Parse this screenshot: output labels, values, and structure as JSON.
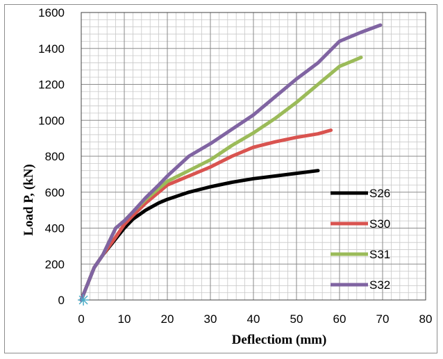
{
  "chart_data": {
    "type": "line",
    "title": "",
    "xlabel": "Deflectiom (mm)",
    "ylabel": "Load P, (kN)",
    "xlim": [
      0,
      80
    ],
    "ylim": [
      0,
      1600
    ],
    "xticks": [
      0,
      10,
      20,
      30,
      40,
      50,
      60,
      70,
      80
    ],
    "yticks": [
      0,
      200,
      400,
      600,
      800,
      1000,
      1200,
      1400,
      1600
    ],
    "grid": true,
    "legend_position": "right",
    "series": [
      {
        "name": "S26",
        "color": "#000000",
        "points": [
          [
            0,
            0
          ],
          [
            1,
            60
          ],
          [
            3,
            180
          ],
          [
            5,
            250
          ],
          [
            8,
            340
          ],
          [
            10,
            400
          ],
          [
            12,
            450
          ],
          [
            15,
            500
          ],
          [
            18,
            540
          ],
          [
            20,
            560
          ],
          [
            25,
            600
          ],
          [
            30,
            630
          ],
          [
            35,
            655
          ],
          [
            40,
            675
          ],
          [
            45,
            690
          ],
          [
            50,
            705
          ],
          [
            55,
            720
          ]
        ]
      },
      {
        "name": "S30",
        "color": "#d9534f",
        "points": [
          [
            0,
            0
          ],
          [
            1,
            60
          ],
          [
            3,
            180
          ],
          [
            5,
            250
          ],
          [
            8,
            350
          ],
          [
            10,
            420
          ],
          [
            12,
            470
          ],
          [
            15,
            540
          ],
          [
            18,
            600
          ],
          [
            20,
            640
          ],
          [
            25,
            690
          ],
          [
            30,
            740
          ],
          [
            35,
            800
          ],
          [
            40,
            850
          ],
          [
            45,
            880
          ],
          [
            50,
            905
          ],
          [
            55,
            925
          ],
          [
            58,
            945
          ]
        ]
      },
      {
        "name": "S31",
        "color": "#9bbb59",
        "points": [
          [
            0,
            0
          ],
          [
            1,
            60
          ],
          [
            3,
            180
          ],
          [
            5,
            250
          ],
          [
            8,
            400
          ],
          [
            10,
            440
          ],
          [
            12,
            490
          ],
          [
            15,
            560
          ],
          [
            18,
            620
          ],
          [
            20,
            660
          ],
          [
            25,
            720
          ],
          [
            30,
            780
          ],
          [
            35,
            860
          ],
          [
            40,
            930
          ],
          [
            45,
            1010
          ],
          [
            50,
            1100
          ],
          [
            55,
            1200
          ],
          [
            60,
            1300
          ],
          [
            65,
            1350
          ]
        ]
      },
      {
        "name": "S32",
        "color": "#8064a2",
        "points": [
          [
            0,
            0
          ],
          [
            1,
            60
          ],
          [
            3,
            180
          ],
          [
            5,
            250
          ],
          [
            8,
            400
          ],
          [
            10,
            440
          ],
          [
            12,
            490
          ],
          [
            15,
            570
          ],
          [
            18,
            640
          ],
          [
            20,
            690
          ],
          [
            25,
            800
          ],
          [
            30,
            870
          ],
          [
            35,
            950
          ],
          [
            40,
            1030
          ],
          [
            45,
            1130
          ],
          [
            50,
            1230
          ],
          [
            55,
            1320
          ],
          [
            60,
            1440
          ],
          [
            65,
            1490
          ],
          [
            69.5,
            1530
          ]
        ]
      }
    ]
  }
}
